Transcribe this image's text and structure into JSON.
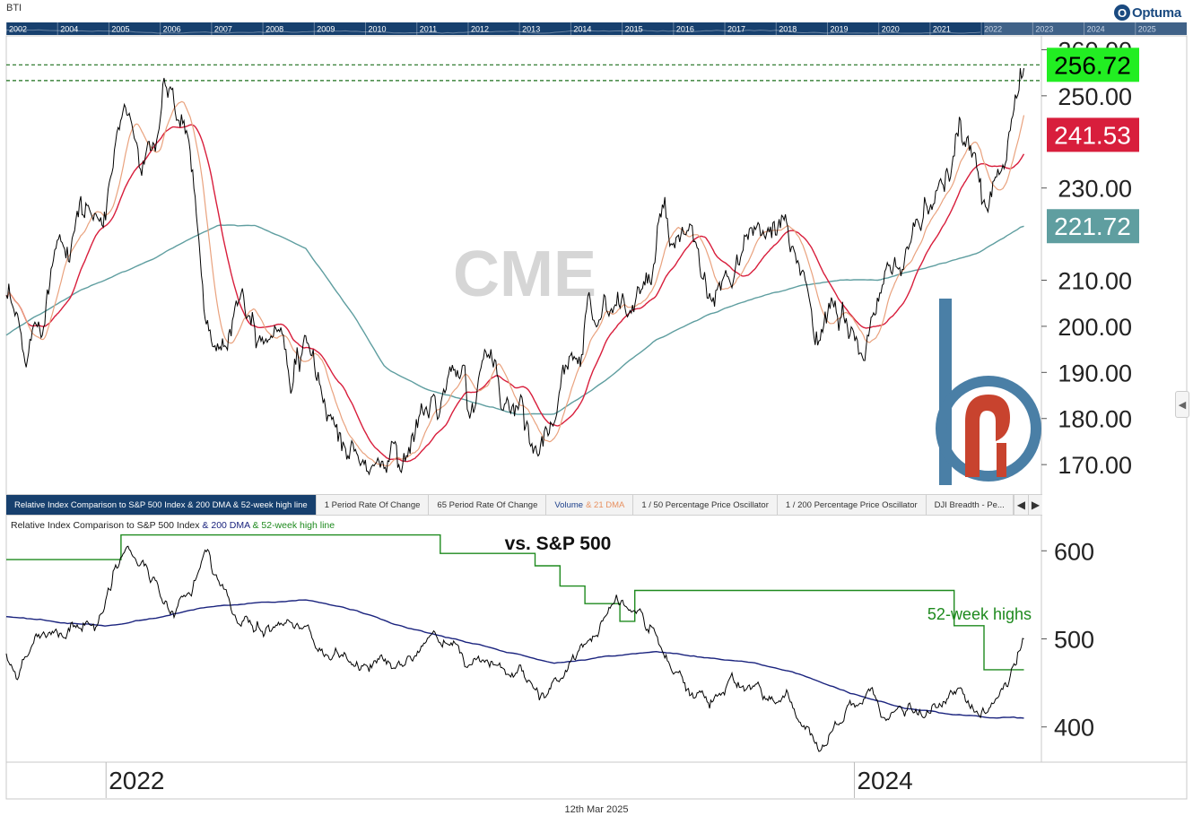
{
  "header": {
    "ticker": "BTI",
    "brand": "Optuma",
    "brand_mark": "O"
  },
  "colors": {
    "navigator_bg": "#17406e",
    "price": "#000000",
    "ma_fast": "#e9a27e",
    "ma_mid": "#d81e3c",
    "ma_slow": "#5f9ea0",
    "dma_200": "#1a237e",
    "high_52w": "#1e8a1e",
    "badge_green": "#22ee22",
    "badge_red": "#d81e3c",
    "badge_teal": "#5f9ea0",
    "watermark": "#d6d6d6",
    "logo_blue": "#4a7fa6",
    "logo_red": "#c8432e"
  },
  "navigator": {
    "years": [
      "2002",
      "2004",
      "2005",
      "2006",
      "2007",
      "2008",
      "2009",
      "2010",
      "2011",
      "2012",
      "2013",
      "2014",
      "2015",
      "2016",
      "2017",
      "2018",
      "2019",
      "2020",
      "2021",
      "2022",
      "2023",
      "2024",
      "2025"
    ]
  },
  "watermark": "CME",
  "tabs": [
    {
      "label": "Relative Index Comparison to S&P 500 Index & 200 DMA & 52-week high line",
      "active": true
    },
    {
      "label": "1 Period Rate Of Change"
    },
    {
      "label": "65 Period Rate Of Change"
    },
    {
      "label": "Volume",
      "accent": "& 21 DMA"
    },
    {
      "label": "1 / 50 Percentage Price Oscillator"
    },
    {
      "label": "1 / 200 Percentage Price Oscillator"
    },
    {
      "label": "DJI Breadth - Pe..."
    }
  ],
  "tab_arrows": {
    "prev": "◀",
    "next": "▶"
  },
  "lower_panel": {
    "title_main": "Relative Index Comparison to S&P 500 Index",
    "title_200": " & 200 DMA",
    "title_52": " & 52-week high line",
    "annotation": "vs. S&P 500",
    "highs_label": "52-week highs"
  },
  "side_handle": "◀",
  "footer": {
    "date": "12th Mar 2025"
  },
  "chart_data": [
    {
      "type": "line",
      "name": "price-panel",
      "y_ticks": [
        "170.00",
        "180.00",
        "190.00",
        "200.00",
        "210.00",
        "230.00",
        "250.00",
        "260.00"
      ],
      "y_tick_values": [
        170,
        180,
        190,
        200,
        210,
        230,
        250,
        260
      ],
      "ylim": [
        164,
        263
      ],
      "x_range": [
        2021.1,
        2025.25
      ],
      "badges": [
        {
          "text": "256.72",
          "value": 256.72,
          "color_key": "badge_green"
        },
        {
          "text": "241.53",
          "value": 241.53,
          "color_key": "badge_red"
        },
        {
          "text": "221.72",
          "value": 221.72,
          "color_key": "badge_teal"
        }
      ],
      "reference_lines": [
        256.72,
        253.3
      ],
      "price_anchors": [
        [
          2021.1,
          205
        ],
        [
          2021.18,
          187
        ],
        [
          2021.3,
          222
        ],
        [
          2021.4,
          230
        ],
        [
          2021.5,
          224
        ],
        [
          2021.57,
          249
        ],
        [
          2021.66,
          232
        ],
        [
          2021.74,
          249
        ],
        [
          2021.84,
          236
        ],
        [
          2021.9,
          201
        ],
        [
          2021.96,
          196
        ],
        [
          2022.04,
          213
        ],
        [
          2022.12,
          206
        ],
        [
          2022.2,
          205
        ],
        [
          2022.28,
          198
        ],
        [
          2022.36,
          186
        ],
        [
          2022.44,
          178
        ],
        [
          2022.52,
          170
        ],
        [
          2022.6,
          170
        ],
        [
          2022.7,
          175
        ],
        [
          2022.8,
          182
        ],
        [
          2022.88,
          187
        ],
        [
          2022.96,
          181
        ],
        [
          2023.04,
          191
        ],
        [
          2023.12,
          185
        ],
        [
          2023.2,
          180
        ],
        [
          2023.28,
          181
        ],
        [
          2023.36,
          185
        ],
        [
          2023.44,
          208
        ],
        [
          2023.52,
          206
        ],
        [
          2023.6,
          204
        ],
        [
          2023.68,
          210
        ],
        [
          2023.74,
          220
        ],
        [
          2023.82,
          213
        ],
        [
          2023.92,
          202
        ],
        [
          2024.0,
          205
        ],
        [
          2024.08,
          220
        ],
        [
          2024.14,
          216
        ],
        [
          2024.22,
          214
        ],
        [
          2024.3,
          210
        ],
        [
          2024.38,
          202
        ],
        [
          2024.46,
          198
        ],
        [
          2024.54,
          196
        ],
        [
          2024.6,
          203
        ],
        [
          2024.66,
          208
        ],
        [
          2024.72,
          220
        ],
        [
          2024.8,
          226
        ],
        [
          2024.86,
          222
        ],
        [
          2024.92,
          238
        ],
        [
          2024.98,
          233
        ],
        [
          2025.04,
          230
        ],
        [
          2025.1,
          243
        ],
        [
          2025.14,
          250
        ],
        [
          2025.18,
          256
        ]
      ],
      "ma_slow_anchors": [
        [
          2021.1,
          198
        ],
        [
          2021.4,
          208
        ],
        [
          2021.7,
          215
        ],
        [
          2021.95,
          222
        ],
        [
          2022.1,
          222
        ],
        [
          2022.3,
          217
        ],
        [
          2022.5,
          202
        ],
        [
          2022.62,
          191
        ],
        [
          2022.8,
          186
        ],
        [
          2023.0,
          183
        ],
        [
          2023.15,
          181
        ],
        [
          2023.3,
          181
        ],
        [
          2023.5,
          188
        ],
        [
          2023.7,
          197
        ],
        [
          2023.9,
          202
        ],
        [
          2024.1,
          206
        ],
        [
          2024.3,
          209
        ],
        [
          2024.45,
          210
        ],
        [
          2024.6,
          210
        ],
        [
          2024.8,
          213
        ],
        [
          2025.0,
          216
        ],
        [
          2025.18,
          221.7
        ]
      ]
    },
    {
      "type": "line",
      "name": "relative-panel",
      "y_ticks": [
        "400",
        "500",
        "600"
      ],
      "y_tick_values": [
        400,
        500,
        600
      ],
      "ylim": [
        360,
        640
      ],
      "x_range": [
        2021.1,
        2025.25
      ],
      "x_ticks": [
        "2022",
        "2024"
      ],
      "x_tick_values": [
        2021.5,
        2024.5
      ],
      "rel_anchors": [
        [
          2021.1,
          475
        ],
        [
          2021.14,
          455
        ],
        [
          2021.22,
          505
        ],
        [
          2021.3,
          515
        ],
        [
          2021.38,
          525
        ],
        [
          2021.46,
          505
        ],
        [
          2021.52,
          560
        ],
        [
          2021.58,
          595
        ],
        [
          2021.64,
          585
        ],
        [
          2021.7,
          565
        ],
        [
          2021.76,
          530
        ],
        [
          2021.84,
          545
        ],
        [
          2021.9,
          590
        ],
        [
          2021.96,
          560
        ],
        [
          2022.04,
          520
        ],
        [
          2022.12,
          500
        ],
        [
          2022.2,
          515
        ],
        [
          2022.3,
          500
        ],
        [
          2022.4,
          475
        ],
        [
          2022.5,
          470
        ],
        [
          2022.6,
          480
        ],
        [
          2022.7,
          470
        ],
        [
          2022.8,
          490
        ],
        [
          2022.9,
          495
        ],
        [
          2023.0,
          478
        ],
        [
          2023.1,
          460
        ],
        [
          2023.18,
          440
        ],
        [
          2023.26,
          440
        ],
        [
          2023.34,
          470
        ],
        [
          2023.42,
          490
        ],
        [
          2023.5,
          520
        ],
        [
          2023.58,
          550
        ],
        [
          2023.64,
          530
        ],
        [
          2023.7,
          500
        ],
        [
          2023.78,
          470
        ],
        [
          2023.86,
          445
        ],
        [
          2023.94,
          440
        ],
        [
          2024.0,
          448
        ],
        [
          2024.08,
          458
        ],
        [
          2024.16,
          430
        ],
        [
          2024.24,
          420
        ],
        [
          2024.3,
          395
        ],
        [
          2024.36,
          378
        ],
        [
          2024.42,
          390
        ],
        [
          2024.48,
          415
        ],
        [
          2024.56,
          420
        ],
        [
          2024.64,
          410
        ],
        [
          2024.72,
          415
        ],
        [
          2024.8,
          420
        ],
        [
          2024.88,
          418
        ],
        [
          2024.94,
          428
        ],
        [
          2025.0,
          410
        ],
        [
          2025.06,
          420
        ],
        [
          2025.1,
          440
        ],
        [
          2025.14,
          470
        ],
        [
          2025.18,
          500
        ]
      ],
      "dma_anchors": [
        [
          2021.1,
          526
        ],
        [
          2021.3,
          520
        ],
        [
          2021.5,
          515
        ],
        [
          2021.7,
          523
        ],
        [
          2021.9,
          535
        ],
        [
          2022.1,
          542
        ],
        [
          2022.3,
          543
        ],
        [
          2022.5,
          532
        ],
        [
          2022.7,
          513
        ],
        [
          2022.9,
          500
        ],
        [
          2023.1,
          485
        ],
        [
          2023.3,
          473
        ],
        [
          2023.5,
          480
        ],
        [
          2023.7,
          484
        ],
        [
          2023.9,
          478
        ],
        [
          2024.1,
          472
        ],
        [
          2024.3,
          457
        ],
        [
          2024.5,
          437
        ],
        [
          2024.7,
          422
        ],
        [
          2024.9,
          414
        ],
        [
          2025.05,
          410
        ],
        [
          2025.18,
          410
        ]
      ],
      "high_steps": [
        [
          2021.1,
          590
        ],
        [
          2021.56,
          590
        ],
        [
          2021.56,
          618
        ],
        [
          2022.84,
          618
        ],
        [
          2022.84,
          597
        ],
        [
          2023.22,
          597
        ],
        [
          2023.22,
          583
        ],
        [
          2023.32,
          583
        ],
        [
          2023.32,
          560
        ],
        [
          2023.42,
          560
        ],
        [
          2023.42,
          540
        ],
        [
          2023.56,
          540
        ],
        [
          2023.56,
          520
        ],
        [
          2023.62,
          520
        ],
        [
          2023.62,
          555
        ],
        [
          2024.9,
          555
        ],
        [
          2024.9,
          515
        ],
        [
          2025.02,
          515
        ],
        [
          2025.02,
          465
        ],
        [
          2025.18,
          465
        ]
      ]
    }
  ]
}
